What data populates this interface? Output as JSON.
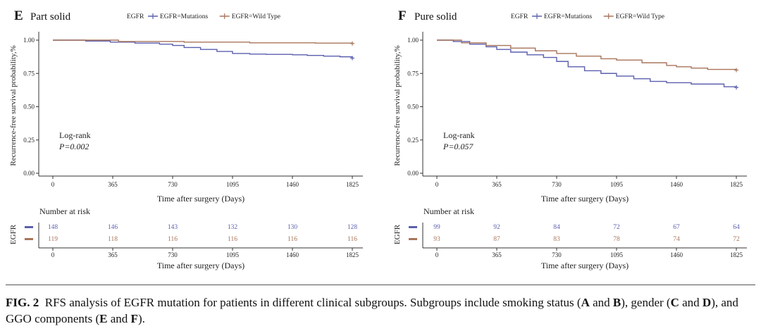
{
  "caption": {
    "fig_label": "FIG. 2",
    "text_parts": [
      "RFS analysis of EGFR mutation for patients in different clinical subgroups. Subgroups include smoking status (",
      "A",
      " and ",
      "B",
      "), gender (",
      "C",
      " and ",
      "D",
      "), and GGO components (",
      "E",
      " and ",
      "F",
      ")."
    ]
  },
  "chart_data": [
    {
      "type": "line",
      "panel_letter": "E",
      "title": "Part solid",
      "legend_title": "EGFR",
      "legend": [
        "EGFR=Mutations",
        "EGFR=Wild Type"
      ],
      "xlabel": "Time after surgery (Days)",
      "ylabel": "Recurrence-free survival probability,%",
      "xlim": [
        0,
        1825
      ],
      "ylim": [
        0,
        1
      ],
      "xticks": [
        "0",
        "365",
        "730",
        "1095",
        "1460",
        "1825"
      ],
      "yticks": [
        "0.00",
        "0.25",
        "0.50",
        "0.75",
        "1.00"
      ],
      "annotation": [
        "Log-rank",
        "P=0.002"
      ],
      "series": [
        {
          "name": "EGFR=Mutations",
          "color": "#5b5fae",
          "x": [
            0,
            200,
            350,
            500,
            650,
            730,
            800,
            900,
            1000,
            1095,
            1200,
            1300,
            1400,
            1460,
            1550,
            1650,
            1750,
            1825
          ],
          "y": [
            1.0,
            0.993,
            0.985,
            0.978,
            0.97,
            0.96,
            0.945,
            0.93,
            0.915,
            0.9,
            0.895,
            0.893,
            0.893,
            0.89,
            0.885,
            0.88,
            0.875,
            0.865
          ]
        },
        {
          "name": "EGFR=Wild Type",
          "color": "#a9745a",
          "x": [
            0,
            400,
            800,
            1200,
            1600,
            1825
          ],
          "y": [
            1.0,
            0.99,
            0.985,
            0.98,
            0.978,
            0.975
          ]
        }
      ],
      "risk_table": {
        "title": "Number at risk",
        "strata_label": "EGFR",
        "times": [
          "0",
          "365",
          "730",
          "1095",
          "1460",
          "1825"
        ],
        "rows": [
          {
            "name": "EGFR=Mutations",
            "color": "#5b5fae",
            "values": [
              "148",
              "146",
              "143",
              "132",
              "130",
              "128"
            ]
          },
          {
            "name": "EGFR=Wild Type",
            "color": "#a9745a",
            "values": [
              "119",
              "118",
              "116",
              "116",
              "116",
              "116"
            ]
          }
        ]
      }
    },
    {
      "type": "line",
      "panel_letter": "F",
      "title": "Pure solid",
      "legend_title": "EGFR",
      "legend": [
        "EGFR=Mutations",
        "EGFR=Wild Type"
      ],
      "xlabel": "Time after surgery (Days)",
      "ylabel": "Recurrence-free survival probability,%",
      "xlim": [
        0,
        1825
      ],
      "ylim": [
        0,
        1
      ],
      "xticks": [
        "0",
        "365",
        "730",
        "1095",
        "1460",
        "1825"
      ],
      "yticks": [
        "0.00",
        "0.25",
        "0.50",
        "0.75",
        "1.00"
      ],
      "annotation": [
        "Log-rank",
        "P=0.057"
      ],
      "series": [
        {
          "name": "EGFR=Mutations",
          "color": "#5b5fae",
          "x": [
            0,
            100,
            200,
            300,
            365,
            450,
            550,
            650,
            730,
            800,
            900,
            1000,
            1095,
            1200,
            1300,
            1400,
            1460,
            1550,
            1650,
            1750,
            1825
          ],
          "y": [
            1.0,
            0.99,
            0.97,
            0.95,
            0.93,
            0.91,
            0.89,
            0.87,
            0.84,
            0.8,
            0.77,
            0.75,
            0.73,
            0.71,
            0.69,
            0.68,
            0.68,
            0.67,
            0.67,
            0.65,
            0.645
          ]
        },
        {
          "name": "EGFR=Wild Type",
          "color": "#a9745a",
          "x": [
            0,
            150,
            300,
            450,
            600,
            730,
            850,
            1000,
            1095,
            1250,
            1400,
            1460,
            1550,
            1650,
            1825
          ],
          "y": [
            1.0,
            0.98,
            0.96,
            0.94,
            0.92,
            0.9,
            0.88,
            0.86,
            0.85,
            0.83,
            0.81,
            0.8,
            0.79,
            0.78,
            0.775
          ]
        }
      ],
      "risk_table": {
        "title": "Number at risk",
        "strata_label": "EGFR",
        "times": [
          "0",
          "365",
          "730",
          "1095",
          "1460",
          "1825"
        ],
        "rows": [
          {
            "name": "EGFR=Mutations",
            "color": "#5b5fae",
            "values": [
              "99",
              "92",
              "84",
              "72",
              "67",
              "64"
            ]
          },
          {
            "name": "EGFR=Wild Type",
            "color": "#a9745a",
            "values": [
              "93",
              "87",
              "83",
              "78",
              "74",
              "72"
            ]
          }
        ]
      }
    }
  ]
}
